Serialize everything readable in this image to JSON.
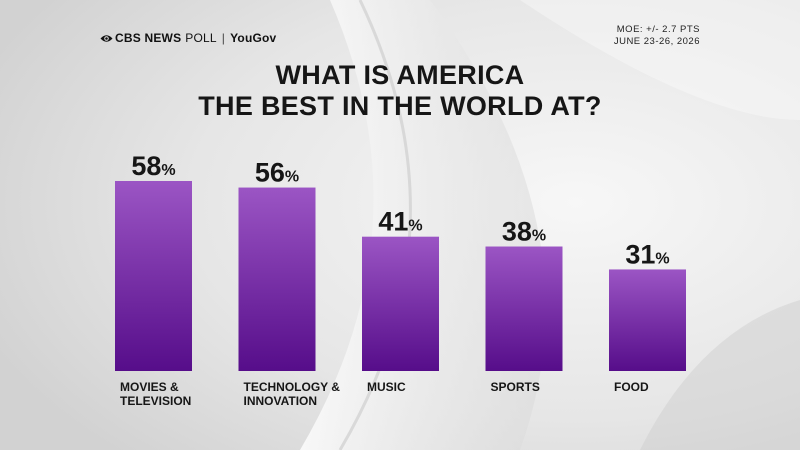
{
  "header": {
    "brand_cbs": "CBS NEWS",
    "brand_poll": "POLL",
    "brand_separator": "|",
    "brand_partner": "YouGov",
    "moe": "MOE: +/- 2.7 PTS",
    "dates": "JUNE 23-26, 2026"
  },
  "colors": {
    "bar_top": "#9b55c4",
    "bar_bottom": "#560d8a",
    "background": "#e9e9e9"
  },
  "chart_data": {
    "type": "bar",
    "title": "WHAT IS AMERICA THE BEST IN THE WORLD AT?",
    "title_lines": [
      "WHAT IS AMERICA",
      "THE BEST IN THE WORLD AT?"
    ],
    "categories": [
      "MOVIES & TELEVISION",
      "TECHNOLOGY & INNOVATION",
      "MUSIC",
      "SPORTS",
      "FOOD"
    ],
    "category_lines": [
      [
        "MOVIES &",
        "TELEVISION"
      ],
      [
        "TECHNOLOGY &",
        "INNOVATION"
      ],
      [
        "MUSIC"
      ],
      [
        "SPORTS"
      ],
      [
        "FOOD"
      ]
    ],
    "values": [
      58,
      56,
      41,
      38,
      31
    ],
    "value_labels": [
      "58",
      "56",
      "41",
      "38",
      "31"
    ],
    "value_suffix": "%",
    "xlabel": "",
    "ylabel": "",
    "ylim": [
      0,
      100
    ],
    "grid": false
  }
}
